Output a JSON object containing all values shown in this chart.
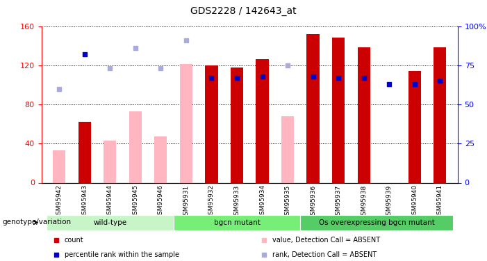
{
  "title": "GDS2228 / 142643_at",
  "samples": [
    "GSM95942",
    "GSM95943",
    "GSM95944",
    "GSM95945",
    "GSM95946",
    "GSM95931",
    "GSM95932",
    "GSM95933",
    "GSM95934",
    "GSM95935",
    "GSM95936",
    "GSM95937",
    "GSM95938",
    "GSM95939",
    "GSM95940",
    "GSM95941"
  ],
  "count_present": [
    null,
    62,
    null,
    null,
    null,
    null,
    120,
    118,
    126,
    null,
    152,
    148,
    138,
    null,
    114,
    138
  ],
  "count_absent": [
    33,
    null,
    43,
    73,
    47,
    121,
    null,
    null,
    null,
    68,
    null,
    null,
    null,
    null,
    null,
    null
  ],
  "rank_present": [
    null,
    82,
    null,
    null,
    null,
    null,
    67,
    67,
    68,
    null,
    68,
    67,
    67,
    63,
    63,
    65
  ],
  "rank_absent": [
    60,
    null,
    73,
    86,
    73,
    91,
    null,
    null,
    null,
    75,
    null,
    null,
    null,
    null,
    null,
    null
  ],
  "groups": [
    {
      "label": "wild-type",
      "start": 0,
      "end": 5,
      "color": "#c8f5c8"
    },
    {
      "label": "bgcn mutant",
      "start": 5,
      "end": 10,
      "color": "#77ee77"
    },
    {
      "label": "Os overexpressing bgcn mutant",
      "start": 10,
      "end": 16,
      "color": "#55cc66"
    }
  ],
  "ylim_left": [
    0,
    160
  ],
  "ylim_right": [
    0,
    100
  ],
  "yticks_left": [
    0,
    40,
    80,
    120,
    160
  ],
  "yticks_right": [
    0,
    25,
    50,
    75,
    100
  ],
  "color_count": "#cc0000",
  "color_count_absent": "#ffb6c1",
  "color_rank_present": "#0000cc",
  "color_rank_absent": "#aaaadd",
  "bar_width": 0.5,
  "bg_color": "#ffffff",
  "genotype_label": "genotype/variation"
}
